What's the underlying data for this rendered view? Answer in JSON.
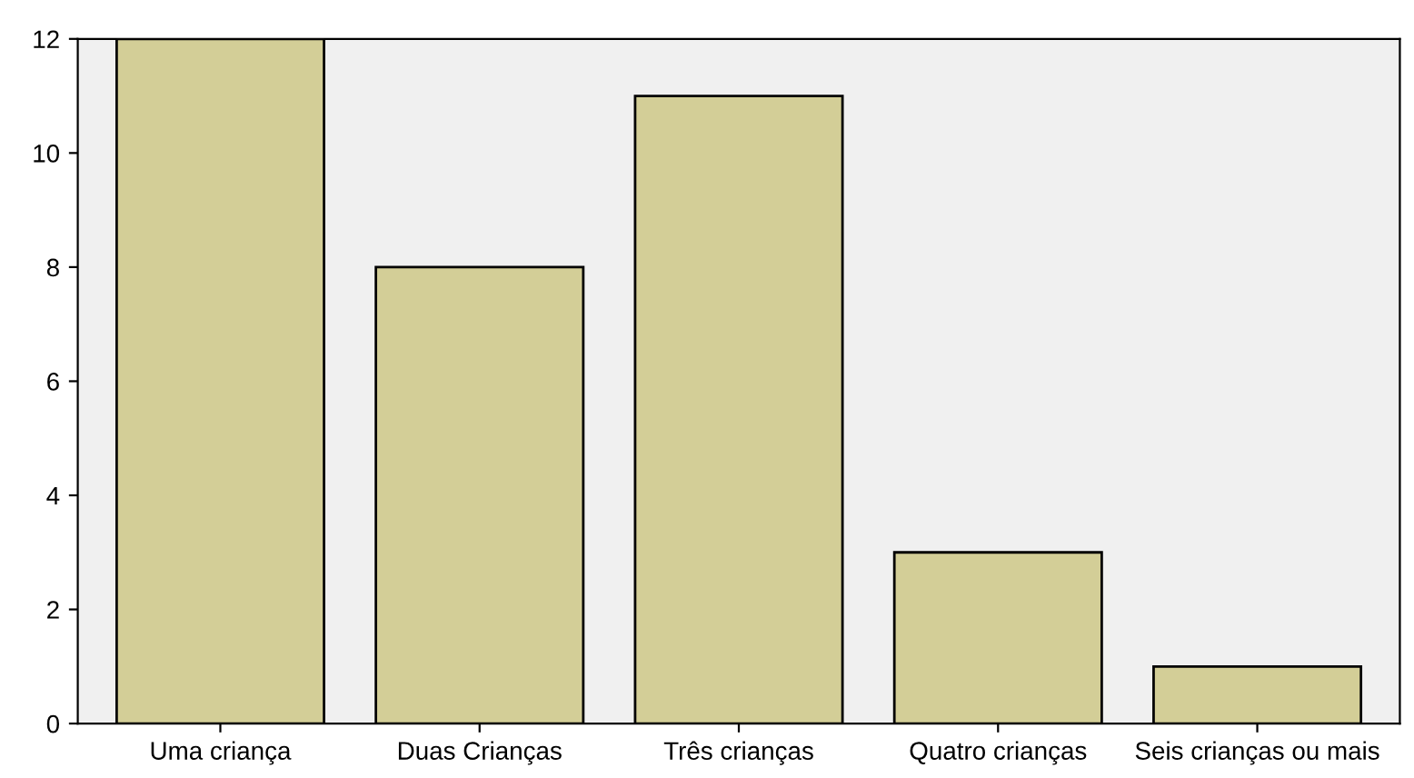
{
  "chart_data": {
    "type": "bar",
    "categories": [
      "Uma criança",
      "Duas Crianças",
      "Três crianças",
      "Quatro crianças",
      "Seis crianças ou mais"
    ],
    "values": [
      12,
      8,
      11,
      3,
      1
    ],
    "color": "#d3ce97",
    "ylim": [
      0,
      12
    ],
    "yticks": [
      0,
      2,
      4,
      6,
      8,
      10,
      12
    ],
    "grid": false
  }
}
